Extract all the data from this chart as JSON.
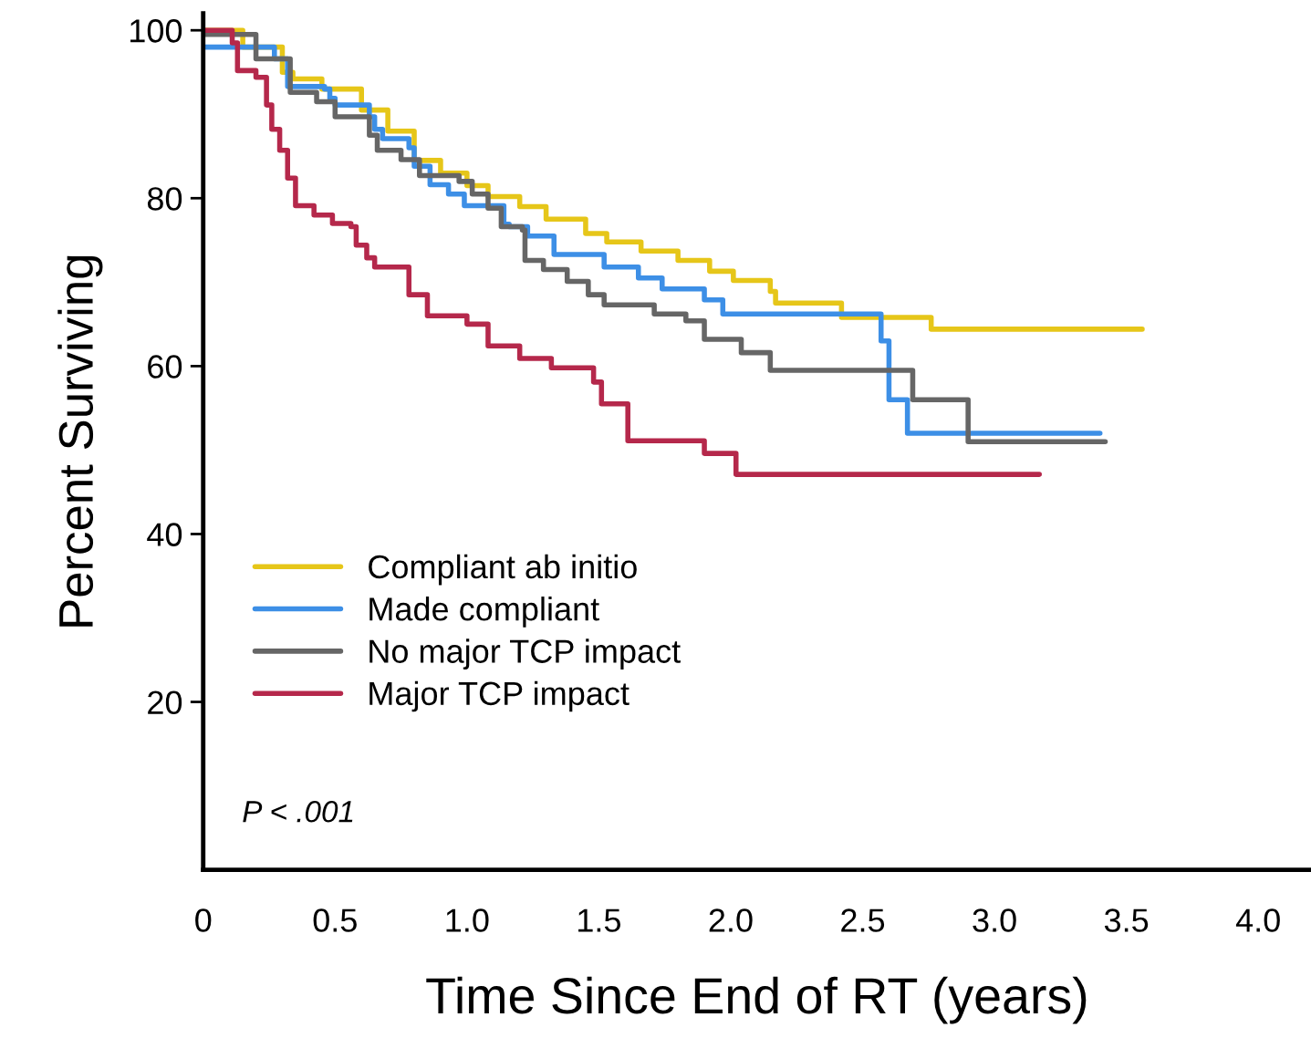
{
  "chart_data": {
    "type": "step",
    "xlabel": "Time Since End of RT (years)",
    "ylabel": "Percent Surviving",
    "xlim": [
      0,
      4.2
    ],
    "ylim": [
      0,
      102
    ],
    "xticks": [
      {
        "value": 0,
        "label": "0"
      },
      0.5,
      {
        "value": 1,
        "label": "1.0"
      },
      1.5,
      {
        "value": 2,
        "label": "2.0"
      },
      2.5,
      {
        "value": 3,
        "label": "3.0"
      },
      3.5,
      {
        "value": 4,
        "label": "4.0"
      }
    ],
    "yticks": [
      20,
      40,
      60,
      80,
      100
    ],
    "grid": false,
    "legend": "bottom left",
    "line_style": "solid",
    "marker": "none",
    "annotations": [
      "P < .001"
    ],
    "series": [
      {
        "name": "Compliant ab initio",
        "color": "#e6c619",
        "x": [
          0,
          0.15,
          0.3,
          0.34,
          0.45,
          0.6,
          0.7,
          0.8,
          0.9,
          1.0,
          1.08,
          1.2,
          1.3,
          1.45,
          1.53,
          1.66,
          1.8,
          1.92,
          2.01,
          2.15,
          2.17,
          2.42,
          2.76,
          3.56
        ],
        "values": [
          100,
          98,
          95,
          94.2,
          93,
          90.5,
          88,
          84.5,
          83,
          81.5,
          80.2,
          79,
          77.5,
          75.8,
          74.8,
          73.7,
          72.6,
          71.3,
          70.2,
          68.9,
          67.5,
          65.8,
          64.4,
          64.4
        ]
      },
      {
        "name": "Made compliant",
        "color": "#3d8fe6",
        "x": [
          0,
          0.27,
          0.32,
          0.46,
          0.48,
          0.5,
          0.63,
          0.65,
          0.68,
          0.78,
          0.8,
          0.86,
          0.93,
          0.99,
          1.14,
          1.16,
          1.23,
          1.31,
          1.33,
          1.52,
          1.65,
          1.74,
          1.9,
          1.97,
          2.57,
          2.6,
          2.67,
          3.4
        ],
        "values": [
          98,
          96.6,
          93.3,
          93,
          91.9,
          91.1,
          89.7,
          88.2,
          87.1,
          86,
          83.8,
          81.6,
          80.5,
          79.1,
          76.9,
          76.6,
          75.5,
          75.5,
          73.3,
          71.8,
          70.5,
          69.2,
          67.9,
          66.2,
          63,
          56,
          52,
          52
        ]
      },
      {
        "name": "No major TCP impact",
        "color": "#666666",
        "x": [
          0,
          0.2,
          0.33,
          0.43,
          0.5,
          0.63,
          0.66,
          0.75,
          0.82,
          0.97,
          1.02,
          1.08,
          1.13,
          1.21,
          1.22,
          1.29,
          1.38,
          1.46,
          1.52,
          1.71,
          1.83,
          1.9,
          2.04,
          2.15,
          2.69,
          2.9,
          3.42
        ],
        "values": [
          99.5,
          96.6,
          92.6,
          91.5,
          89.7,
          87.5,
          85.7,
          84.6,
          82.7,
          82,
          80.5,
          78.8,
          76.6,
          76.2,
          72.6,
          71.5,
          70.1,
          68.5,
          67.3,
          66.2,
          65.4,
          63.2,
          61.6,
          59.5,
          56,
          51,
          51
        ]
      },
      {
        "name": "Major TCP impact",
        "color": "#b5284b",
        "x": [
          0,
          0.11,
          0.13,
          0.2,
          0.24,
          0.26,
          0.29,
          0.32,
          0.35,
          0.42,
          0.49,
          0.56,
          0.58,
          0.62,
          0.65,
          0.78,
          0.85,
          1.0,
          1.08,
          1.2,
          1.32,
          1.48,
          1.51,
          1.61,
          1.9,
          2.02,
          3.17
        ],
        "values": [
          100,
          98.5,
          95.2,
          94.4,
          91.1,
          88.2,
          85.7,
          82.4,
          79.1,
          78,
          77,
          76.6,
          74.4,
          72.9,
          71.8,
          68.5,
          66,
          65,
          62.4,
          60.9,
          59.8,
          58.1,
          55.5,
          51.1,
          49.6,
          47.1,
          47.1
        ]
      }
    ]
  }
}
